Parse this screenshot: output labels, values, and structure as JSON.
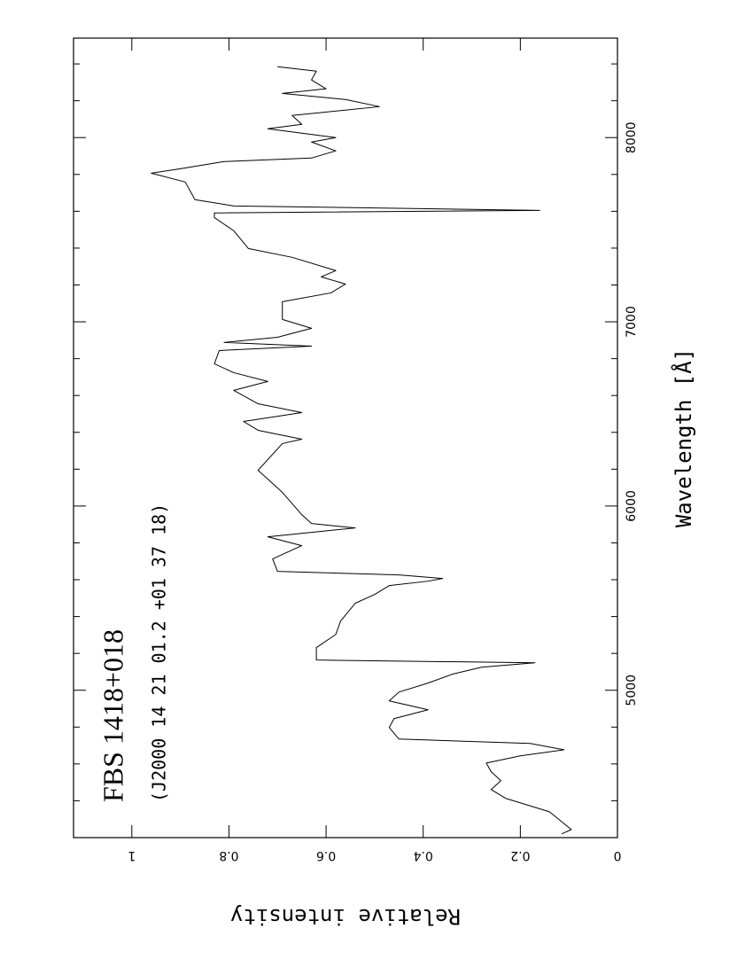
{
  "chart_data": {
    "type": "line",
    "title": "FBS 1418+018",
    "subtitle": "(J2000 14 21 01.2 +01 37 18)",
    "x_label": "Wavelength  [Å]",
    "y_label": "Relative intensity",
    "xlim": [
      4200,
      8540
    ],
    "ylim": [
      0,
      1.12
    ],
    "xticks": [
      5000,
      6000,
      7000,
      8000
    ],
    "xticks_minor": [
      4400,
      4600,
      4800,
      5200,
      5400,
      5600,
      5800,
      6200,
      6400,
      6600,
      6800,
      7200,
      7400,
      7600,
      7800,
      8200,
      8400
    ],
    "yticks": [
      0,
      0.2,
      0.4,
      0.6,
      0.8,
      1
    ],
    "color": "#000000",
    "x": [
      4220,
      4244,
      4340,
      4413,
      4461,
      4509,
      4557,
      4605,
      4644,
      4677,
      4711,
      4735,
      4798,
      4846,
      4894,
      4942,
      4990,
      5039,
      5087,
      5125,
      5149,
      5164,
      5231,
      5303,
      5376,
      5472,
      5520,
      5568,
      5592,
      5607,
      5626,
      5645,
      5713,
      5785,
      5833,
      5857,
      5881,
      5905,
      5953,
      6074,
      6146,
      6194,
      6339,
      6363,
      6411,
      6459,
      6507,
      6555,
      6628,
      6676,
      6724,
      6772,
      6844,
      6868,
      6888,
      6916,
      6965,
      7013,
      7109,
      7157,
      7205,
      7244,
      7278,
      7350,
      7398,
      7494,
      7566,
      7591,
      7605,
      7629,
      7663,
      7759,
      7807,
      7831,
      7870,
      7889,
      7928,
      7976,
      8000,
      8048,
      8072,
      8120,
      8168,
      8207,
      8240,
      8265,
      8313,
      8361,
      8385
    ],
    "values": [
      0.115,
      0.095,
      0.14,
      0.23,
      0.26,
      0.24,
      0.26,
      0.27,
      0.2,
      0.11,
      0.18,
      0.45,
      0.47,
      0.46,
      0.39,
      0.47,
      0.45,
      0.39,
      0.34,
      0.28,
      0.17,
      0.62,
      0.62,
      0.58,
      0.57,
      0.54,
      0.5,
      0.47,
      0.39,
      0.36,
      0.45,
      0.7,
      0.71,
      0.65,
      0.72,
      0.63,
      0.54,
      0.63,
      0.65,
      0.69,
      0.72,
      0.74,
      0.69,
      0.65,
      0.74,
      0.77,
      0.65,
      0.74,
      0.79,
      0.72,
      0.79,
      0.83,
      0.82,
      0.63,
      0.81,
      0.7,
      0.63,
      0.69,
      0.69,
      0.59,
      0.56,
      0.61,
      0.58,
      0.67,
      0.76,
      0.79,
      0.83,
      0.83,
      0.16,
      0.79,
      0.87,
      0.89,
      0.96,
      0.9,
      0.81,
      0.63,
      0.58,
      0.63,
      0.58,
      0.72,
      0.65,
      0.67,
      0.49,
      0.56,
      0.69,
      0.6,
      0.63,
      0.62,
      0.7
    ]
  }
}
